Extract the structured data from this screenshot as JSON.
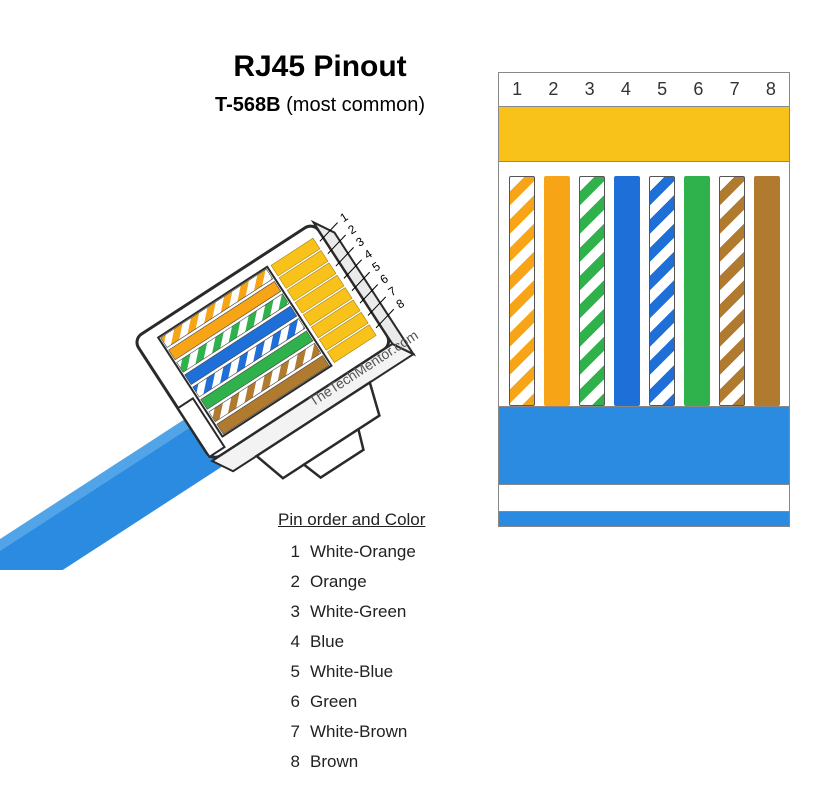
{
  "title": "RJ45  Pinout",
  "subtitle": "T-568B",
  "subtitle_note": "(most common)",
  "title_fontsize": 30,
  "subtitle_fontsize": 20,
  "credit_text": "TheTechMentor.com",
  "colors": {
    "orange": "#f7a417",
    "green": "#2fb24b",
    "blue": "#1f6fd8",
    "brown": "#b07a2f",
    "contact_gold": "#f8c21a",
    "cable_jacket": "#2b8be0",
    "cable_jacket_light": "#6db6ef",
    "connector_body": "#ffffff",
    "connector_edge": "#2a2a2a",
    "pin_number_fontsize": 18,
    "list_fontsize": 17
  },
  "pins": [
    {
      "num": 1,
      "label": "White-Orange",
      "type": "striped",
      "color_key": "orange"
    },
    {
      "num": 2,
      "label": "Orange",
      "type": "solid",
      "color_key": "orange"
    },
    {
      "num": 3,
      "label": "White-Green",
      "type": "striped",
      "color_key": "green"
    },
    {
      "num": 4,
      "label": "Blue",
      "type": "solid",
      "color_key": "blue"
    },
    {
      "num": 5,
      "label": "White-Blue",
      "type": "striped",
      "color_key": "blue"
    },
    {
      "num": 6,
      "label": "Green",
      "type": "solid",
      "color_key": "green"
    },
    {
      "num": 7,
      "label": "White-Brown",
      "type": "striped",
      "color_key": "brown"
    },
    {
      "num": 8,
      "label": "Brown",
      "type": "solid",
      "color_key": "brown"
    }
  ],
  "pin_list_heading": "Pin order and Color",
  "iso_connector": {
    "rotation_deg": -33,
    "pin_label_fontsize": 12,
    "body_fill": "#ffffff",
    "body_stroke": "#2a2a2a",
    "window_fill": "#ffffff",
    "cable_fill": "#2b8be0"
  }
}
